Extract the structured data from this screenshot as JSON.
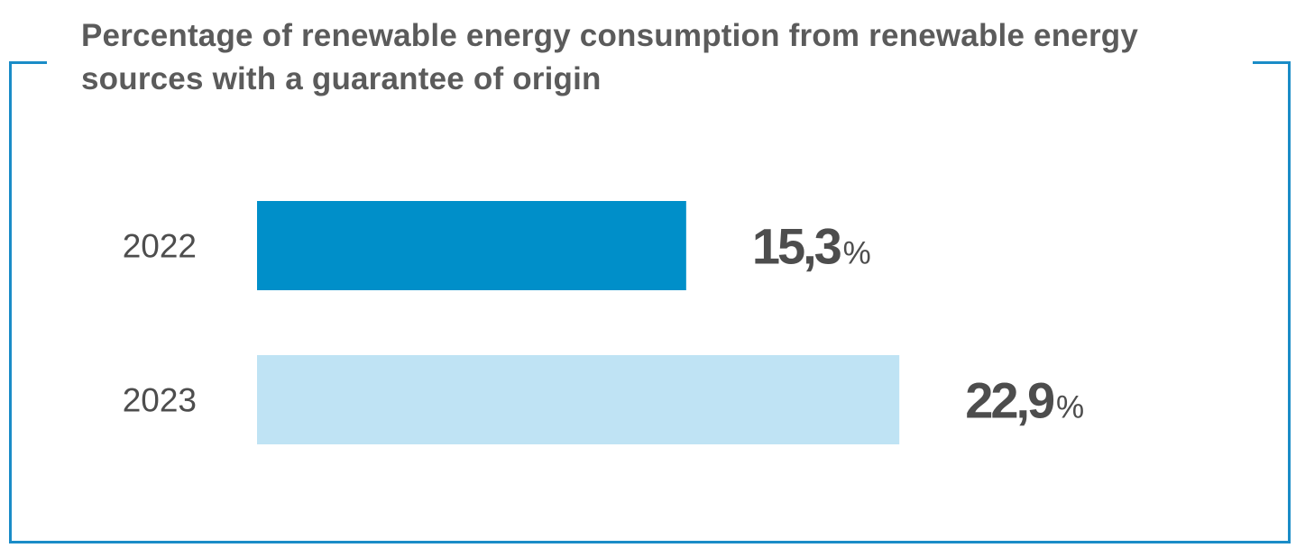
{
  "title": "Percentage of renewable energy consumption from renewable energy sources with a guarantee of origin",
  "chart_data": {
    "type": "bar",
    "orientation": "horizontal",
    "title": "Percentage of renewable energy consumption from renewable energy sources with a guarantee of origin",
    "categories": [
      "2022",
      "2023"
    ],
    "values": [
      15.3,
      22.9
    ],
    "value_labels": [
      "15,3",
      "22,9"
    ],
    "unit": "%",
    "colors": [
      "#008fc9",
      "#bfe3f4"
    ],
    "grid": false,
    "legend": "none"
  }
}
